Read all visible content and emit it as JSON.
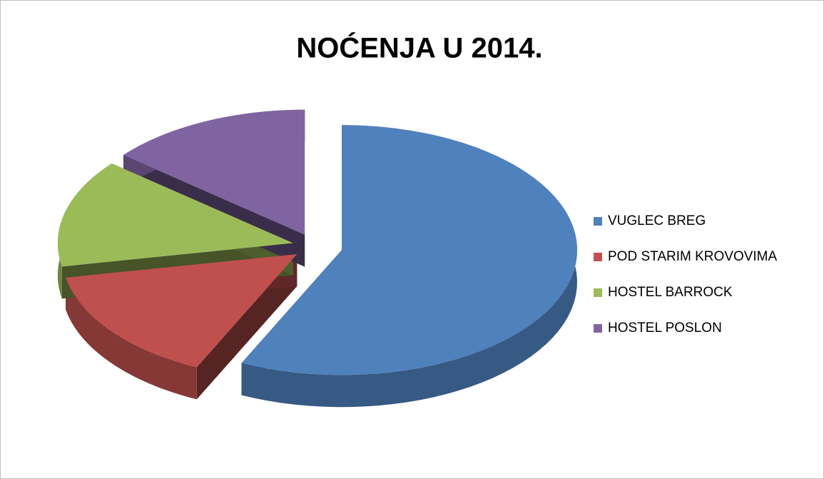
{
  "chart_data": {
    "type": "pie",
    "title": "NOĆENJA U 2014.",
    "categories": [
      "VUGLEC BREG",
      "POD STARIM KROVOVIMA",
      "HOSTEL BARROCK",
      "HOSTEL POSLON"
    ],
    "values": [
      57,
      15,
      14,
      14
    ],
    "colors": [
      "#4f81bd",
      "#c0504d",
      "#9bbb59",
      "#8064a2"
    ],
    "legend": "right"
  }
}
